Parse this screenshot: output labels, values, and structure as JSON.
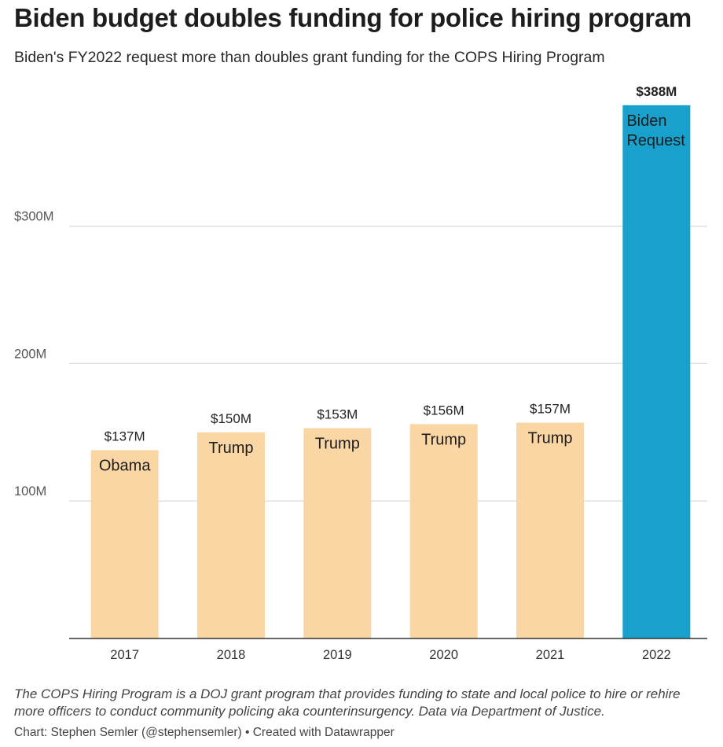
{
  "title": "Biden budget doubles funding for police hiring program",
  "subtitle": "Biden's FY2022 request more than doubles grant funding for the COPS Hiring Program",
  "notes": "The COPS Hiring Program is a DOJ grant program that provides funding to state and local police to hire or rehire more officers to conduct community policing aka counterinsurgency. Data via Department of Justice.",
  "credit": "Chart: Stephen Semler (@stephensemler) • Created with Datawrapper",
  "colors": {
    "default_bar": "#fad6a5",
    "highlight_bar": "#18a1cd",
    "grid": "#d9d9d9",
    "axis": "#333333"
  },
  "chart_data": {
    "type": "bar",
    "title": "Biden budget doubles funding for police hiring program",
    "xlabel": "",
    "ylabel": "",
    "categories": [
      "2017",
      "2018",
      "2019",
      "2020",
      "2021",
      "2022"
    ],
    "values": [
      137,
      150,
      153,
      156,
      157,
      388
    ],
    "value_labels": [
      "$137M",
      "$150M",
      "$153M",
      "$156M",
      "$157M",
      "$388M"
    ],
    "bar_labels": [
      "Obama",
      "Trump",
      "Trump",
      "Trump",
      "Trump",
      "Biden Request"
    ],
    "highlight_index": 5,
    "yticks": [
      100,
      200,
      300
    ],
    "ytick_labels": [
      "100M",
      "200M",
      "$300M"
    ],
    "ylim": [
      0,
      400
    ],
    "grid": true
  }
}
